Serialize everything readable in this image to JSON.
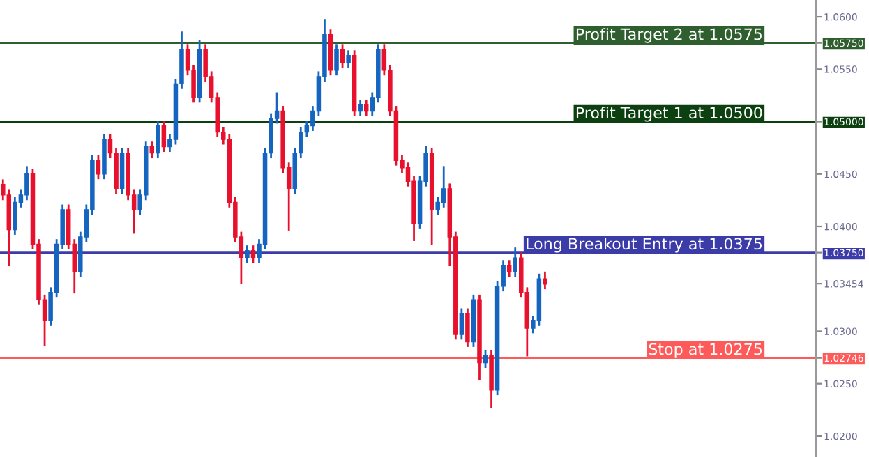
{
  "chart_data": {
    "type": "candlestick",
    "categories": [
      null,
      null,
      null,
      null,
      null,
      null,
      null,
      null,
      null,
      null,
      null,
      null,
      null,
      null,
      null,
      null,
      null,
      null,
      null,
      null,
      null,
      null,
      null,
      null,
      null,
      null,
      null,
      null,
      null,
      null,
      null,
      null,
      null,
      null,
      null,
      null,
      null,
      null,
      null,
      null,
      null,
      null,
      null,
      null,
      null,
      null,
      null,
      null,
      null,
      null,
      null,
      null,
      null,
      null,
      null,
      null,
      null,
      null,
      null,
      null,
      null,
      null,
      null,
      null,
      null,
      null,
      null,
      null,
      null,
      null,
      null,
      null,
      null,
      null,
      null,
      null,
      null,
      null,
      null,
      null,
      null,
      null,
      null,
      null,
      null,
      null,
      null,
      null,
      null,
      null,
      null,
      null,
      null,
      null,
      null,
      null,
      null,
      null,
      null,
      null,
      null,
      null,
      null,
      null,
      null,
      null,
      null,
      null,
      null,
      null,
      null,
      null,
      null,
      null,
      null,
      null,
      null,
      null,
      null,
      null,
      null,
      null,
      null,
      null,
      null,
      null,
      null,
      null,
      null,
      null,
      null,
      null,
      null,
      null,
      null,
      null,
      null
    ],
    "ohlc": [
      [
        1.044,
        1.0444,
        1.0426,
        1.043
      ],
      [
        1.043,
        1.0434,
        1.0363,
        1.0397
      ],
      [
        1.0397,
        1.0427,
        1.0393,
        1.0423
      ],
      [
        1.0423,
        1.0434,
        1.0419,
        1.043
      ],
      [
        1.043,
        1.0456,
        1.0426,
        1.045
      ],
      [
        1.045,
        1.0454,
        1.0379,
        1.0383
      ],
      [
        1.0383,
        1.0387,
        1.0326,
        1.033
      ],
      [
        1.033,
        1.0334,
        1.0287,
        1.031
      ],
      [
        1.031,
        1.0341,
        1.0306,
        1.0337
      ],
      [
        1.0337,
        1.0387,
        1.0333,
        1.0383
      ],
      [
        1.0383,
        1.042,
        1.0379,
        1.0416
      ],
      [
        1.0416,
        1.042,
        1.0379,
        1.0383
      ],
      [
        1.0383,
        1.0387,
        1.0337,
        1.0357
      ],
      [
        1.0357,
        1.0394,
        1.0353,
        1.039
      ],
      [
        1.039,
        1.042,
        1.0386,
        1.0416
      ],
      [
        1.0416,
        1.0467,
        1.0412,
        1.0463
      ],
      [
        1.0463,
        1.0467,
        1.0446,
        1.045
      ],
      [
        1.045,
        1.0487,
        1.0446,
        1.0483
      ],
      [
        1.0483,
        1.0487,
        1.0466,
        1.047
      ],
      [
        1.047,
        1.0474,
        1.0432,
        1.0436
      ],
      [
        1.0436,
        1.0474,
        1.0432,
        1.047
      ],
      [
        1.047,
        1.0474,
        1.0426,
        1.043
      ],
      [
        1.043,
        1.0434,
        1.0394,
        1.0416
      ],
      [
        1.0416,
        1.0434,
        1.0412,
        1.043
      ],
      [
        1.043,
        1.048,
        1.0426,
        1.0476
      ],
      [
        1.0476,
        1.048,
        1.0466,
        1.047
      ],
      [
        1.047,
        1.05,
        1.0466,
        1.0496
      ],
      [
        1.0496,
        1.05,
        1.0472,
        1.0476
      ],
      [
        1.0476,
        1.0487,
        1.0472,
        1.0483
      ],
      [
        1.0483,
        1.054,
        1.0479,
        1.0536
      ],
      [
        1.0536,
        1.0585,
        1.0532,
        1.0569
      ],
      [
        1.0569,
        1.0573,
        1.0545,
        1.0549
      ],
      [
        1.0549,
        1.0553,
        1.0519,
        1.0523
      ],
      [
        1.0523,
        1.0577,
        1.0519,
        1.0569
      ],
      [
        1.0569,
        1.0573,
        1.0539,
        1.0543
      ],
      [
        1.0543,
        1.0547,
        1.0519,
        1.0523
      ],
      [
        1.0523,
        1.0527,
        1.0486,
        1.049
      ],
      [
        1.049,
        1.0494,
        1.0479,
        1.0483
      ],
      [
        1.0483,
        1.0487,
        1.0419,
        1.0423
      ],
      [
        1.0423,
        1.0427,
        1.0386,
        1.039
      ],
      [
        1.039,
        1.0394,
        1.0346,
        1.037
      ],
      [
        1.037,
        1.0381,
        1.0366,
        1.0377
      ],
      [
        1.0377,
        1.0381,
        1.0366,
        1.037
      ],
      [
        1.037,
        1.0387,
        1.0366,
        1.0383
      ],
      [
        1.0383,
        1.0474,
        1.0379,
        1.047
      ],
      [
        1.047,
        1.0507,
        1.0466,
        1.0503
      ],
      [
        1.0503,
        1.0527,
        1.0499,
        1.051
      ],
      [
        1.051,
        1.0514,
        1.0452,
        1.0456
      ],
      [
        1.0456,
        1.046,
        1.0397,
        1.0436
      ],
      [
        1.0436,
        1.0474,
        1.0432,
        1.047
      ],
      [
        1.047,
        1.0494,
        1.0466,
        1.049
      ],
      [
        1.049,
        1.05,
        1.0486,
        1.0496
      ],
      [
        1.0496,
        1.0514,
        1.0492,
        1.051
      ],
      [
        1.051,
        1.0547,
        1.0506,
        1.0543
      ],
      [
        1.0543,
        1.0597,
        1.0539,
        1.0583
      ],
      [
        1.0583,
        1.0587,
        1.0545,
        1.0549
      ],
      [
        1.0549,
        1.0573,
        1.0545,
        1.0569
      ],
      [
        1.0569,
        1.0573,
        1.0552,
        1.0556
      ],
      [
        1.0556,
        1.0567,
        1.0552,
        1.0563
      ],
      [
        1.0563,
        1.0567,
        1.0506,
        1.051
      ],
      [
        1.051,
        1.052,
        1.0506,
        1.0516
      ],
      [
        1.0516,
        1.052,
        1.0506,
        1.051
      ],
      [
        1.051,
        1.0527,
        1.0506,
        1.0523
      ],
      [
        1.0523,
        1.0573,
        1.0519,
        1.0569
      ],
      [
        1.0569,
        1.0573,
        1.0545,
        1.0549
      ],
      [
        1.0549,
        1.0553,
        1.0506,
        1.051
      ],
      [
        1.051,
        1.0514,
        1.0459,
        1.0463
      ],
      [
        1.0463,
        1.0467,
        1.0452,
        1.0456
      ],
      [
        1.0456,
        1.046,
        1.0439,
        1.0443
      ],
      [
        1.0443,
        1.0447,
        1.0387,
        1.0403
      ],
      [
        1.0403,
        1.0447,
        1.0399,
        1.0443
      ],
      [
        1.0443,
        1.0476,
        1.0439,
        1.047
      ],
      [
        1.047,
        1.0474,
        1.0383,
        1.0416
      ],
      [
        1.0416,
        1.0427,
        1.0412,
        1.0423
      ],
      [
        1.0423,
        1.0456,
        1.0419,
        1.0436
      ],
      [
        1.0436,
        1.044,
        1.0363,
        1.039
      ],
      [
        1.039,
        1.0394,
        1.0293,
        1.0297
      ],
      [
        1.0297,
        1.0321,
        1.0293,
        1.0317
      ],
      [
        1.0317,
        1.0321,
        1.0286,
        1.029
      ],
      [
        1.029,
        1.0334,
        1.0286,
        1.033
      ],
      [
        1.033,
        1.0334,
        1.0254,
        1.027
      ],
      [
        1.027,
        1.0281,
        1.0266,
        1.0277
      ],
      [
        1.0277,
        1.0281,
        1.0228,
        1.0244
      ],
      [
        1.0244,
        1.0347,
        1.024,
        1.0343
      ],
      [
        1.0343,
        1.0367,
        1.0339,
        1.0363
      ],
      [
        1.0363,
        1.0367,
        1.0353,
        1.0357
      ],
      [
        1.0357,
        1.0379,
        1.0353,
        1.037
      ],
      [
        1.037,
        1.0374,
        1.0333,
        1.0337
      ],
      [
        1.0337,
        1.0341,
        1.0277,
        1.0303
      ],
      [
        1.0303,
        1.0314,
        1.0299,
        1.031
      ],
      [
        1.031,
        1.0354,
        1.0306,
        1.035
      ],
      [
        1.035,
        1.0356,
        1.0341,
        1.0345
      ],
      null,
      null,
      null,
      null,
      null,
      null,
      null,
      null,
      null,
      null,
      null,
      null,
      null,
      null,
      null,
      null,
      null,
      null,
      null,
      null,
      null,
      null,
      null,
      null,
      null,
      null,
      null,
      null,
      null,
      null,
      null,
      null,
      null,
      null,
      null,
      null,
      null,
      null,
      null,
      null,
      null,
      null,
      null,
      null,
      null
    ],
    "colors": [
      "#e8112d",
      "#e8112d",
      "#1565c0",
      "#1565c0",
      "#1565c0",
      "#e8112d",
      "#e8112d",
      "#e8112d",
      "#1565c0",
      "#1565c0",
      "#1565c0",
      "#e8112d",
      "#e8112d",
      "#1565c0",
      "#1565c0",
      "#1565c0",
      "#e8112d",
      "#1565c0",
      "#e8112d",
      "#e8112d",
      "#1565c0",
      "#e8112d",
      "#e8112d",
      "#1565c0",
      "#1565c0",
      "#e8112d",
      "#1565c0",
      "#e8112d",
      "#1565c0",
      "#1565c0",
      "#1565c0",
      "#e8112d",
      "#e8112d",
      "#1565c0",
      "#e8112d",
      "#e8112d",
      "#e8112d",
      "#e8112d",
      "#e8112d",
      "#e8112d",
      "#e8112d",
      "#1565c0",
      "#e8112d",
      "#1565c0",
      "#1565c0",
      "#1565c0",
      "#1565c0",
      "#e8112d",
      "#e8112d",
      "#1565c0",
      "#1565c0",
      "#1565c0",
      "#1565c0",
      "#1565c0",
      "#1565c0",
      "#e8112d",
      "#1565c0",
      "#e8112d",
      "#1565c0",
      "#e8112d",
      "#1565c0",
      "#e8112d",
      "#1565c0",
      "#1565c0",
      "#e8112d",
      "#e8112d",
      "#e8112d",
      "#e8112d",
      "#e8112d",
      "#e8112d",
      "#1565c0",
      "#1565c0",
      "#e8112d",
      "#1565c0",
      "#1565c0",
      "#e8112d",
      "#e8112d",
      "#1565c0",
      "#e8112d",
      "#1565c0",
      "#e8112d",
      "#1565c0",
      "#e8112d",
      "#1565c0",
      "#1565c0",
      "#e8112d",
      "#1565c0",
      "#e8112d",
      "#e8112d",
      "#1565c0",
      "#1565c0",
      "#e8112d",
      null,
      null,
      null,
      null,
      null,
      null,
      null,
      null,
      null,
      null,
      null,
      null,
      null,
      null,
      null,
      null,
      null,
      null,
      null,
      null,
      null,
      null,
      null,
      null,
      null,
      null,
      null,
      null,
      null,
      null,
      null,
      null,
      null,
      null,
      null,
      null,
      null,
      null,
      null,
      null,
      null,
      null,
      null,
      null,
      null
    ],
    "ylim": [
      1.018,
      1.0616
    ],
    "yticks": [
      {
        "value": 1.06,
        "label": "1.0600"
      },
      {
        "value": 1.055,
        "label": "1.0550"
      },
      {
        "value": 1.0575,
        "label": "1.05750"
      },
      {
        "value": 1.05,
        "label": "1.05000"
      },
      {
        "value": 1.045,
        "label": "1.0450"
      },
      {
        "value": 1.04,
        "label": "1.0400"
      },
      {
        "value": 1.0375,
        "label": "1.03750"
      },
      {
        "value": 1.03454,
        "label": "1.03454"
      },
      {
        "value": 1.03,
        "label": "1.0300"
      },
      {
        "value": 1.02746,
        "label": "1.02746"
      },
      {
        "value": 1.025,
        "label": "1.0250"
      },
      {
        "value": 1.02,
        "label": "1.0200"
      }
    ],
    "ref_lines": [
      {
        "axis": "y",
        "value": 1.0575,
        "label": "Profit Target 2 at 1.0575",
        "color": "#2f5f2f"
      },
      {
        "axis": "y",
        "value": 1.05,
        "label": "Profit Target 1 at 1.0500",
        "color": "#0d4010"
      },
      {
        "axis": "y",
        "value": 1.0375,
        "label": "Long Breakout Entry at 1.0375",
        "color": "#3c3ca8"
      },
      {
        "axis": "y",
        "value": 1.02746,
        "label": "Stop at 1.0275",
        "color": "#ff5a5a"
      }
    ],
    "grid": false
  }
}
